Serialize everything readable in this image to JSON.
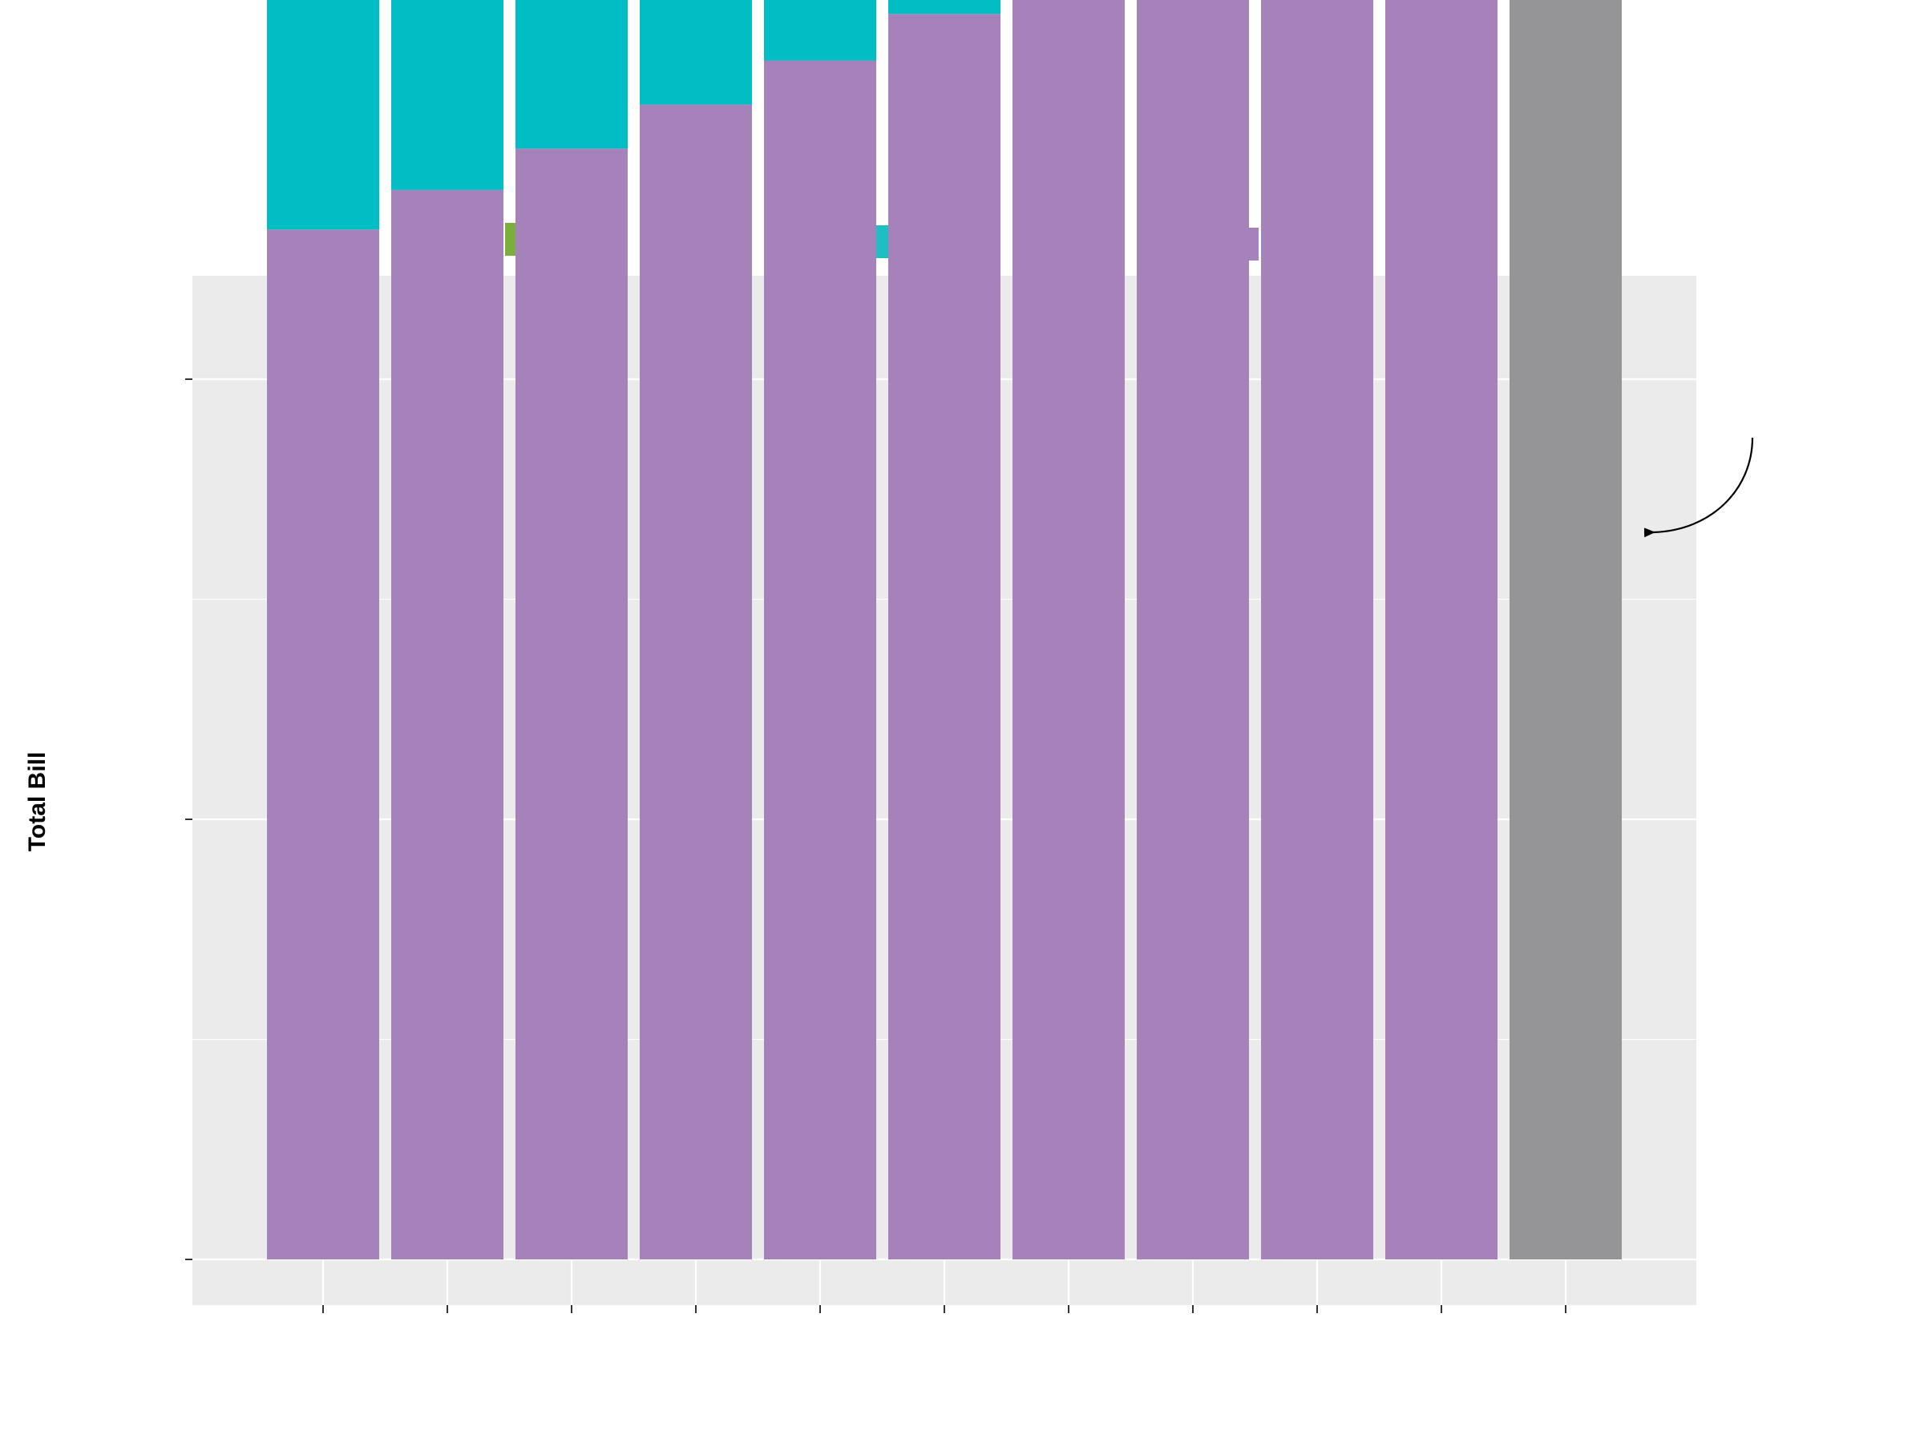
{
  "chart_data": {
    "type": "bar",
    "stacked": true,
    "title": "",
    "xlabel": "",
    "ylabel": "Total Bill",
    "ylim": [
      0,
      2240
    ],
    "y_gridlines": [
      0,
      250,
      500,
      750,
      1000,
      1250,
      1500,
      1750,
      2000,
      2250
    ],
    "categories": [
      "",
      "",
      "",
      "",
      "",
      "",
      "",
      "",
      "",
      "",
      ""
    ],
    "legend_position": "top",
    "series": [
      {
        "color": "#a682bb",
        "values": [
          1170,
          1215,
          1262,
          1312,
          1362,
          1415,
          1473,
          1473,
          1510,
          1562,
          0
        ]
      },
      {
        "color": "#00bec4",
        "values": [
          300,
          310,
          323,
          330,
          343,
          352,
          362,
          310,
          390,
          405,
          0
        ]
      },
      {
        "color": "#7cae00",
        "values": [
          58,
          60,
          62,
          65,
          66,
          72,
          75,
          60,
          75,
          73,
          0
        ]
      },
      {
        "color": "#959598",
        "values": [
          0,
          0,
          0,
          0,
          0,
          0,
          0,
          0,
          0,
          0,
          2130
        ]
      }
    ],
    "legend_swatches": [
      {
        "color": "#7cae3f"
      },
      {
        "color": "#1ebec4"
      },
      {
        "color": "#a682bb"
      }
    ],
    "annotation": {
      "type": "curved-arrow",
      "points_to": "last-bar"
    },
    "grid": true,
    "panel_background": "#ebebeb",
    "gridline_color": "#ffffff"
  }
}
